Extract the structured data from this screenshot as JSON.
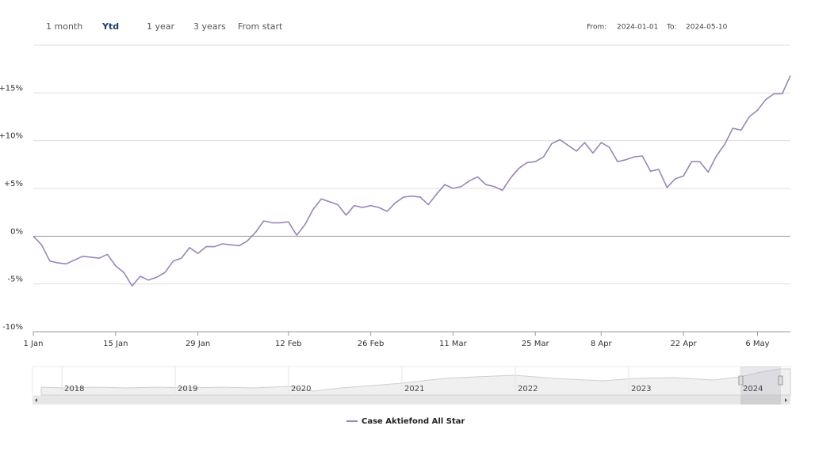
{
  "range_selector": {
    "buttons": [
      "1 month",
      "Ytd",
      "1 year",
      "3 years",
      "From start"
    ],
    "selected_index": 1,
    "from_label": "From:",
    "from": "2024-01-01",
    "to_label": "To:",
    "to": "2024-05-10"
  },
  "chart_data": {
    "type": "line",
    "categories": [
      "1 Jan",
      null,
      null,
      null,
      null,
      null,
      null,
      null,
      null,
      null,
      "15 Jan",
      null,
      null,
      null,
      null,
      null,
      null,
      null,
      null,
      null,
      "29 Jan",
      null,
      null,
      null,
      null,
      null,
      null,
      null,
      null,
      null,
      null,
      "12 Feb",
      null,
      null,
      null,
      null,
      null,
      null,
      null,
      null,
      null,
      "26 Feb",
      null,
      null,
      null,
      null,
      null,
      null,
      null,
      null,
      null,
      "11 Mar",
      null,
      null,
      null,
      null,
      null,
      null,
      null,
      null,
      null,
      "25 Mar",
      null,
      null,
      null,
      null,
      null,
      null,
      null,
      "8 Apr",
      null,
      null,
      null,
      null,
      null,
      null,
      null,
      null,
      null,
      "22 Apr",
      null,
      null,
      null,
      null,
      null,
      null,
      null,
      null,
      "6 May",
      null,
      null,
      null,
      null
    ],
    "series": [
      {
        "name": "Case Aktiefond All Star",
        "color": "#9a86b4",
        "values": [
          0,
          -0.9,
          -2.6,
          -2.8,
          -2.9,
          -2.5,
          -2.1,
          -2.2,
          -2.3,
          -1.9,
          -3.1,
          -3.8,
          -5.2,
          -4.2,
          -4.6,
          -4.3,
          -3.8,
          -2.6,
          -2.3,
          -1.2,
          -1.8,
          -1.1,
          -1.1,
          -0.8,
          -0.9,
          -1.0,
          -0.5,
          0.4,
          1.6,
          1.4,
          1.4,
          1.5,
          0.1,
          1.2,
          2.8,
          3.9,
          3.6,
          3.3,
          2.2,
          3.2,
          3.0,
          3.2,
          3.0,
          2.6,
          3.5,
          4.1,
          4.2,
          4.1,
          3.3,
          4.4,
          5.4,
          5.0,
          5.2,
          5.8,
          6.2,
          5.4,
          5.2,
          4.8,
          6.1,
          7.1,
          7.7,
          7.8,
          8.3,
          9.7,
          10.1,
          9.5,
          8.9,
          9.8,
          8.7,
          9.8,
          9.3,
          7.8,
          8.0,
          8.3,
          8.4,
          6.8,
          7.0,
          5.1,
          6.0,
          6.3,
          7.8,
          7.8,
          6.7,
          8.4,
          9.6,
          11.3,
          11.1,
          12.5,
          13.2,
          14.3,
          14.9,
          14.9,
          16.8
        ]
      }
    ],
    "ylim": [
      -10,
      20
    ],
    "yticks": [
      {
        "value": -10,
        "label": "-10%"
      },
      {
        "value": -5,
        "label": "-5%"
      },
      {
        "value": 0,
        "label": "0%"
      },
      {
        "value": 5,
        "label": "+5%"
      },
      {
        "value": 10,
        "label": "+10%"
      },
      {
        "value": 15,
        "label": "+15%"
      }
    ],
    "grid": true,
    "legend": "bottom"
  },
  "navigator": {
    "years": [
      "2018",
      "2019",
      "2020",
      "2021",
      "2022",
      "2023",
      "2024"
    ]
  }
}
